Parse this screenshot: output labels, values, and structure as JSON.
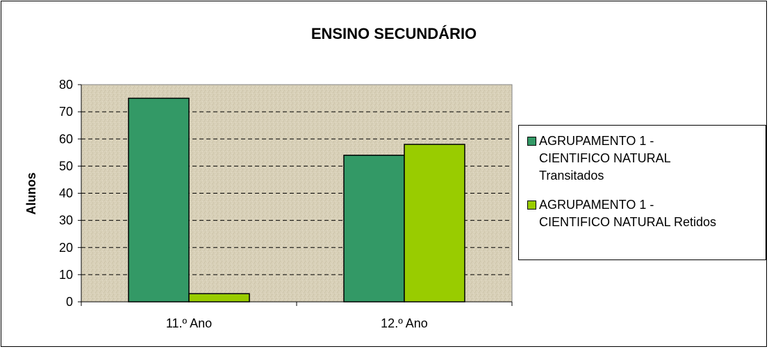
{
  "chart_data": {
    "type": "bar",
    "title": "ENSINO SECUNDÁRIO",
    "ylabel": "Alunos",
    "xlabel": "",
    "ylim": [
      0,
      80
    ],
    "yticks": [
      0,
      10,
      20,
      30,
      40,
      50,
      60,
      70,
      80
    ],
    "categories": [
      "11.º Ano",
      "12.º Ano"
    ],
    "series": [
      {
        "name": "AGRUPAMENTO 1 - CIENTIFICO NATURAL Transitados",
        "values": [
          75,
          54
        ],
        "color": "#339966"
      },
      {
        "name": "AGRUPAMENTO 1 - CIENTIFICO NATURAL Retidos",
        "values": [
          3,
          58
        ],
        "color": "#99cc00"
      }
    ],
    "grid": true,
    "legend_position": "right",
    "plot_background": "#d8d0b8"
  },
  "legend_text": {
    "transitados": "AGRUPAMENTO 1 -\nCIENTIFICO NATURAL\nTransitados",
    "retidos": "AGRUPAMENTO 1 -\nCIENTIFICO NATURAL Retidos"
  }
}
